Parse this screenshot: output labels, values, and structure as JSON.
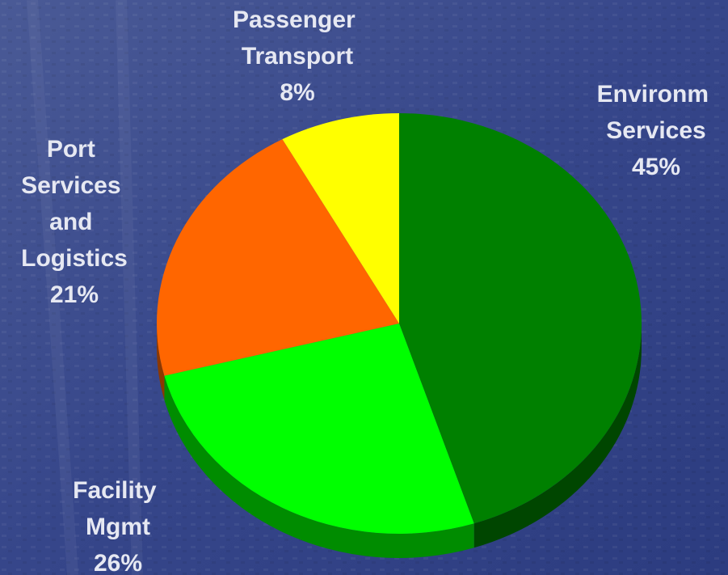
{
  "chart_data": {
    "type": "pie",
    "categories": [
      "Environm Services",
      "Facility Mgmt",
      "Port Services and Logistics",
      "Passenger Transport"
    ],
    "values": [
      45,
      26,
      21,
      8
    ],
    "value_labels": [
      "45%",
      "26%",
      "21%",
      "8%"
    ],
    "colors": [
      "#008000",
      "#00ff00",
      "#ff6600",
      "#ffff00"
    ]
  }
}
